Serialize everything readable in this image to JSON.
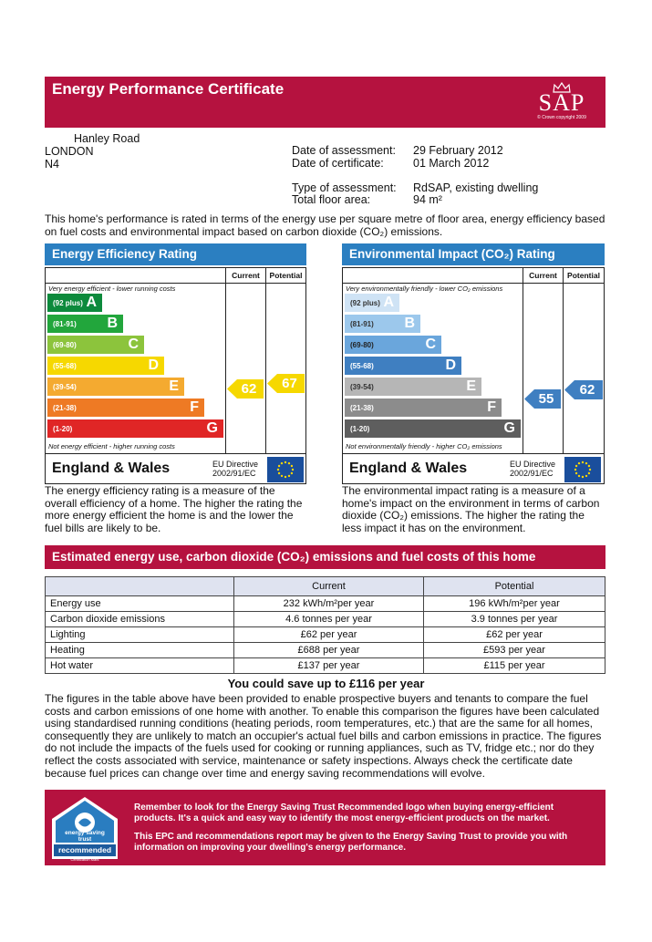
{
  "header": {
    "title": "Energy Performance Certificate",
    "logo_text": "SAP",
    "logo_caption": "© Crown copyright 2009"
  },
  "address": {
    "line1": "Hanley Road",
    "line2": "LONDON",
    "line3": "N4"
  },
  "meta": {
    "date_assessment_label": "Date of assessment:",
    "date_assessment": "29 February 2012",
    "date_certificate_label": "Date of certificate:",
    "date_certificate": "01 March 2012",
    "type_label": "Type of assessment:",
    "type": "RdSAP, existing dwelling",
    "area_label": "Total floor area:",
    "area": "94 m²"
  },
  "intro": "This home's performance is rated in terms of the energy use per square metre of floor area, energy efficiency based on fuel costs and environmental impact based on carbon dioxide (CO₂) emissions.",
  "energy_rating": {
    "title": "Energy Efficiency Rating",
    "col_current": "Current",
    "col_potential": "Potential",
    "top_note": "Very energy efficient - lower running costs",
    "bottom_note": "Not energy efficient - higher running costs",
    "current": "62",
    "potential": "67",
    "current_color": "#f6d800",
    "potential_color": "#f6d800",
    "bands": [
      {
        "range": "(92 plus)",
        "letter": "A",
        "color": "#0d8a3c"
      },
      {
        "range": "(81-91)",
        "letter": "B",
        "color": "#22a63c"
      },
      {
        "range": "(69-80)",
        "letter": "C",
        "color": "#8cc43c"
      },
      {
        "range": "(55-68)",
        "letter": "D",
        "color": "#f6d800"
      },
      {
        "range": "(39-54)",
        "letter": "E",
        "color": "#f4aa30"
      },
      {
        "range": "(21-38)",
        "letter": "F",
        "color": "#ee7a24"
      },
      {
        "range": "(1-20)",
        "letter": "G",
        "color": "#e02626"
      }
    ],
    "region": "England & Wales",
    "directive": "EU Directive",
    "directive_no": "2002/91/EC"
  },
  "env_rating": {
    "title": "Environmental Impact (CO₂) Rating",
    "col_current": "Current",
    "col_potential": "Potential",
    "top_note": "Very environmentally friendly - lower CO₂ emissions",
    "bottom_note": "Not environmentally friendly - higher CO₂ emissions",
    "current": "55",
    "potential": "62",
    "current_color": "#3f7fc1",
    "potential_color": "#3f7fc1",
    "bands": [
      {
        "range": "(92 plus)",
        "letter": "A",
        "color": "#cfe3f5"
      },
      {
        "range": "(81-91)",
        "letter": "B",
        "color": "#9cc8ec"
      },
      {
        "range": "(69-80)",
        "letter": "C",
        "color": "#6aa6dc"
      },
      {
        "range": "(55-68)",
        "letter": "D",
        "color": "#3f7fc1"
      },
      {
        "range": "(39-54)",
        "letter": "E",
        "color": "#b6b6b6"
      },
      {
        "range": "(21-38)",
        "letter": "F",
        "color": "#8c8c8c"
      },
      {
        "range": "(1-20)",
        "letter": "G",
        "color": "#5e5e5e"
      }
    ],
    "region": "England & Wales",
    "directive": "EU Directive",
    "directive_no": "2002/91/EC"
  },
  "energy_desc": "The energy efficiency rating is a measure of the overall efficiency of a home. The higher the rating the more energy efficient the home is and the lower the fuel bills are likely to be.",
  "env_desc": "The environmental impact rating is a measure of a home's impact on the environment in terms of carbon dioxide (CO₂) emissions. The higher the rating the less impact it has on the environment.",
  "costs": {
    "title": "Estimated energy use, carbon dioxide (CO₂) emissions and fuel costs of this home",
    "headers": [
      "",
      "Current",
      "Potential"
    ],
    "rows": [
      [
        "Energy use",
        "232 kWh/m²per year",
        "196 kWh/m²per year"
      ],
      [
        "Carbon dioxide emissions",
        "4.6 tonnes per year",
        "3.9 tonnes per year"
      ],
      [
        "Lighting",
        "£62 per year",
        "£62 per year"
      ],
      [
        "Heating",
        "£688 per year",
        "£593 per year"
      ],
      [
        "Hot water",
        "£137 per year",
        "£115 per year"
      ]
    ]
  },
  "save": "You could save up to £116 per year",
  "body_text": "The figures in the table above have been provided to enable prospective buyers and tenants to compare the fuel costs and carbon emissions of one home with another. To enable this comparison the figures have been calculated using standardised running conditions (heating periods, room temperatures, etc.) that are the same for all homes, consequently they are unlikely to match an occupier's actual fuel bills and carbon emissions in practice. The figures do not include the impacts of the fuels used for cooking or running appliances, such as TV, fridge etc.; nor do they reflect the costs associated with service, maintenance or safety inspections. Always check the certificate date because fuel prices can change over time and energy saving recommendations will evolve.",
  "footer": {
    "logo_top": "energy saving trust",
    "logo_bottom": "recommended",
    "logo_small": "Certification Mark",
    "p1": "Remember to look for the Energy Saving Trust Recommended logo when buying energy-efficient products. It's a quick and easy way to identify the most energy-efficient products on the market.",
    "p2": "This EPC and recommendations report may be given to the Energy Saving Trust to provide you with information on improving your dwelling's energy performance."
  }
}
